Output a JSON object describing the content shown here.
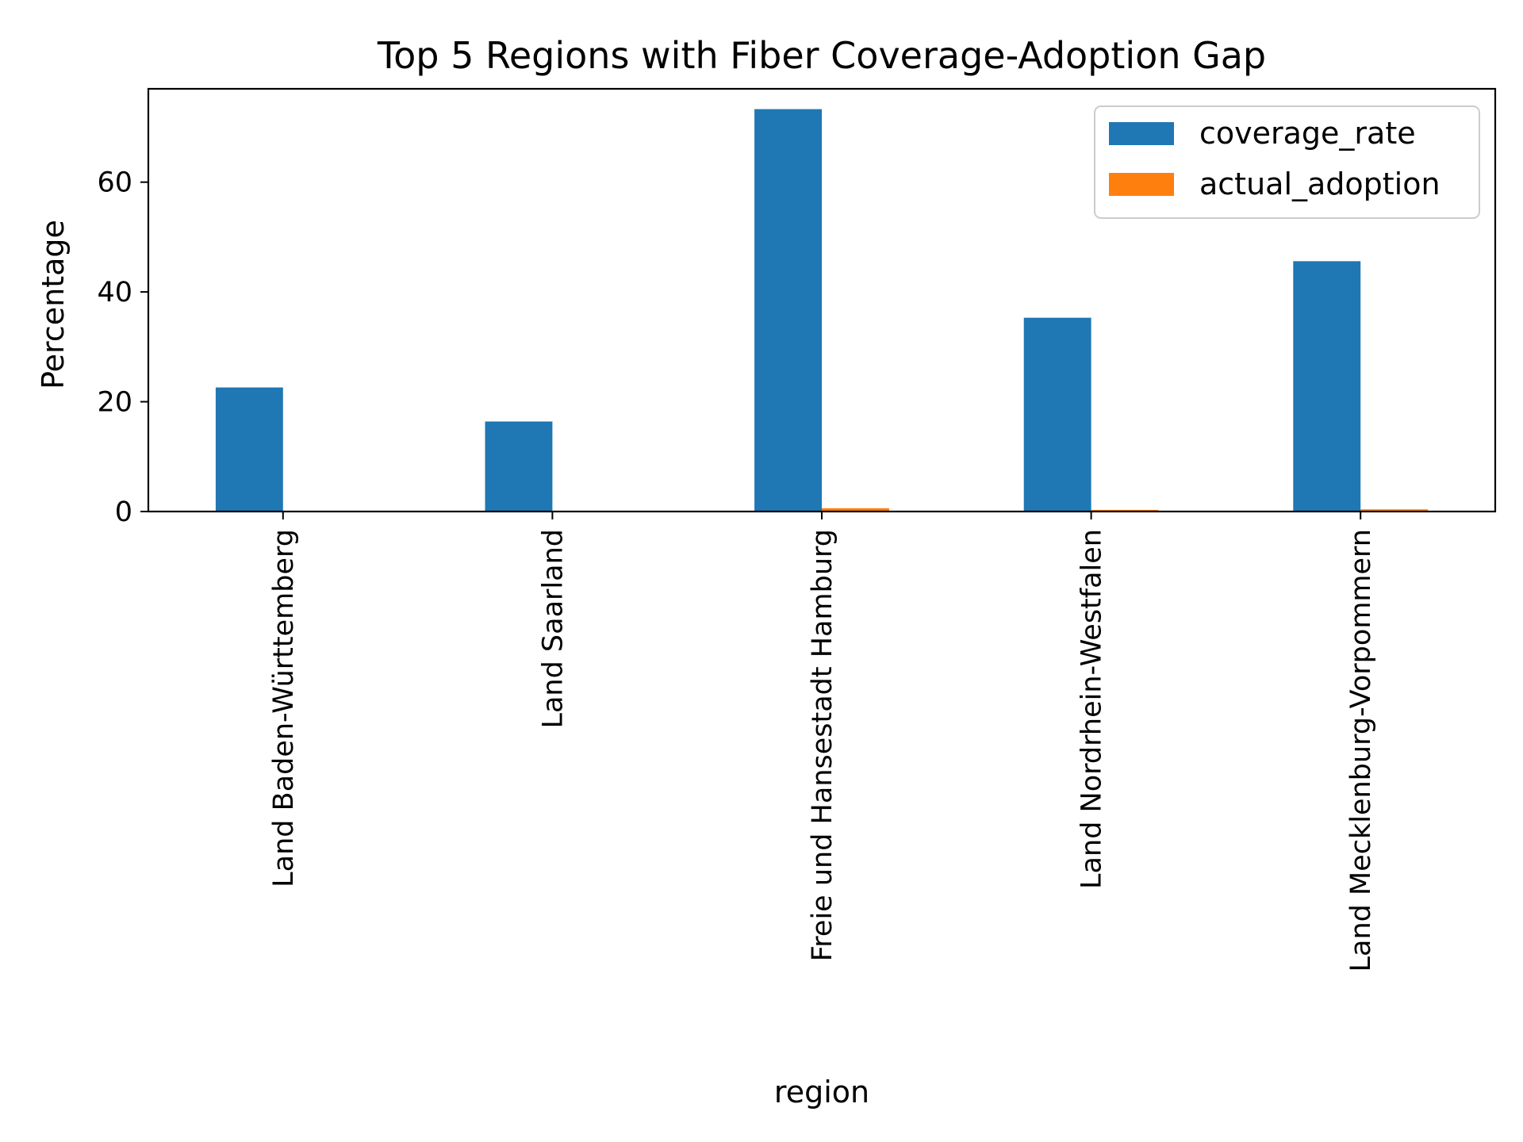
{
  "chart_data": {
    "type": "bar",
    "title": "Top 5 Regions with Fiber Coverage-Adoption Gap",
    "xlabel": "region",
    "ylabel": "Percentage",
    "categories": [
      "Land Baden-Württemberg",
      "Land Saarland",
      "Freie und Hansestadt Hamburg",
      "Land Nordrhein-Westfalen",
      "Land Mecklenburg-Vorpommern"
    ],
    "series": [
      {
        "name": "coverage_rate",
        "color": "#1f77b4",
        "values": [
          22.6,
          16.4,
          73.3,
          35.3,
          45.6
        ]
      },
      {
        "name": "actual_adoption",
        "color": "#ff7f0e",
        "values": [
          0.1,
          0.1,
          0.6,
          0.3,
          0.4
        ]
      }
    ],
    "yticks": [
      0,
      20,
      40,
      60
    ],
    "ylim": [
      0,
      77
    ],
    "grid": false,
    "legend_position": "top-right"
  }
}
